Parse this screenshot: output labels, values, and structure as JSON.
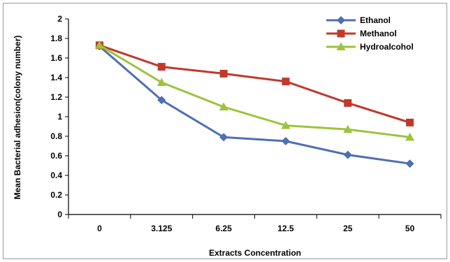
{
  "chart_data": {
    "type": "line",
    "title": "",
    "xlabel": "Extracts Concentration",
    "ylabel": "Mean Bacterial adhesion(colony number)",
    "categories": [
      "0",
      "3.125",
      "6.25",
      "12.5",
      "25",
      "50"
    ],
    "ylim": [
      0,
      2
    ],
    "yticks": [
      "0",
      "0.2",
      "0.4",
      "0.6",
      "0.8",
      "1",
      "1.2",
      "1.4",
      "1.6",
      "1.8",
      "2"
    ],
    "grid": false,
    "legend_position": "top-right",
    "series": [
      {
        "name": "Ethanol",
        "color": "#4f6fb0",
        "marker": "diamond",
        "values": [
          1.72,
          1.17,
          0.79,
          0.75,
          0.61,
          0.52
        ]
      },
      {
        "name": "Methanol",
        "color": "#c0392b",
        "marker": "square",
        "values": [
          1.73,
          1.51,
          1.44,
          1.36,
          1.14,
          0.94
        ]
      },
      {
        "name": "Hydroalcohol",
        "color": "#9dc33b",
        "marker": "triangle",
        "values": [
          1.73,
          1.35,
          1.1,
          0.91,
          0.87,
          0.79
        ]
      }
    ]
  }
}
